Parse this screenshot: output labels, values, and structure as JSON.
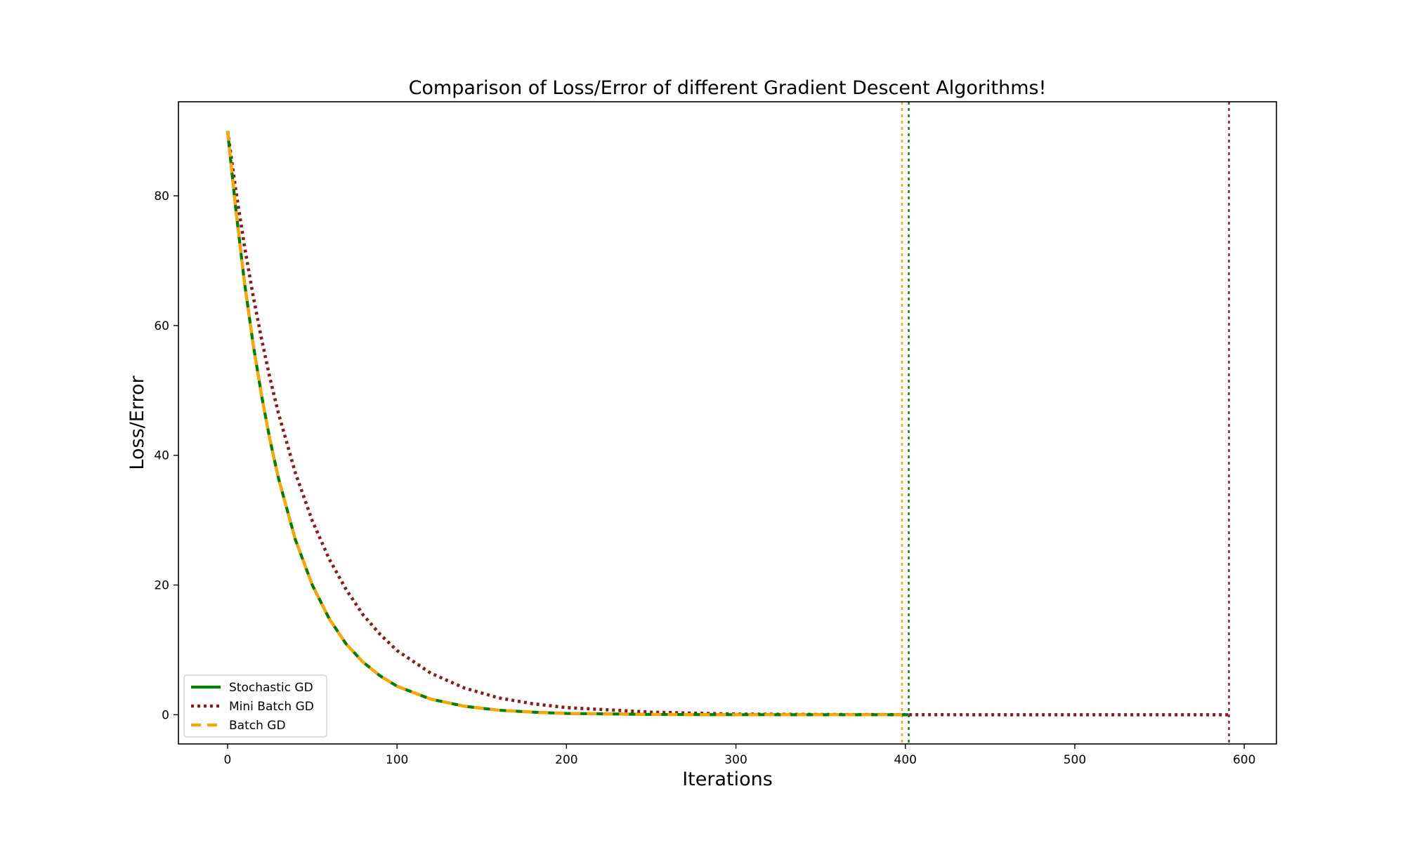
{
  "chart_data": {
    "type": "line",
    "title": "Comparison of Loss/Error of different Gradient Descent Algorithms!",
    "xlabel": "Iterations",
    "ylabel": "Loss/Error",
    "xlim": [
      -29,
      619
    ],
    "ylim": [
      -4.5,
      94.5
    ],
    "xticks": [
      0,
      100,
      200,
      300,
      400,
      500,
      600
    ],
    "yticks": [
      0,
      20,
      40,
      60,
      80
    ],
    "grid": false,
    "legend_position": "lower-left",
    "series": [
      {
        "name": "Stochastic GD",
        "color": "#008000",
        "style": "solid",
        "x": [
          0,
          5,
          10,
          15,
          20,
          25,
          30,
          40,
          50,
          60,
          70,
          80,
          90,
          100,
          120,
          140,
          160,
          180,
          200,
          250,
          300,
          350,
          402
        ],
        "y": [
          90,
          77.6,
          66.6,
          57.3,
          49.3,
          42.4,
          36.5,
          27.0,
          20.0,
          14.8,
          10.9,
          8.1,
          6.0,
          4.4,
          2.4,
          1.3,
          0.7,
          0.4,
          0.2,
          0.05,
          0.01,
          0,
          0
        ]
      },
      {
        "name": "Mini Batch GD",
        "color": "#8b1a1a",
        "style": "dotted",
        "x": [
          0,
          5,
          10,
          15,
          20,
          25,
          30,
          40,
          50,
          60,
          70,
          80,
          90,
          100,
          120,
          140,
          160,
          180,
          200,
          250,
          300,
          350,
          400,
          450,
          500,
          550,
          591
        ],
        "y": [
          90,
          80.6,
          72.2,
          64.7,
          58.0,
          51.9,
          46.5,
          37.3,
          29.9,
          24.0,
          19.3,
          15.4,
          12.4,
          9.9,
          6.4,
          4.1,
          2.6,
          1.7,
          1.1,
          0.4,
          0.1,
          0.04,
          0.01,
          0,
          0,
          0,
          0
        ]
      },
      {
        "name": "Batch GD",
        "color": "#ffa500",
        "style": "dashed",
        "x": [
          0,
          5,
          10,
          15,
          20,
          25,
          30,
          40,
          50,
          60,
          70,
          80,
          90,
          100,
          120,
          140,
          160,
          180,
          200,
          250,
          300,
          350,
          398
        ],
        "y": [
          90,
          77.6,
          66.6,
          57.3,
          49.3,
          42.4,
          36.5,
          27.0,
          20.0,
          14.8,
          10.9,
          8.1,
          6.0,
          4.4,
          2.4,
          1.3,
          0.7,
          0.4,
          0.2,
          0.05,
          0.01,
          0,
          0
        ]
      }
    ],
    "vlines": [
      {
        "x": 398,
        "color": "#ffa500",
        "style": "dotted"
      },
      {
        "x": 402,
        "color": "#008000",
        "style": "dotted"
      },
      {
        "x": 591,
        "color": "#8b1a1a",
        "style": "dotted"
      }
    ]
  }
}
